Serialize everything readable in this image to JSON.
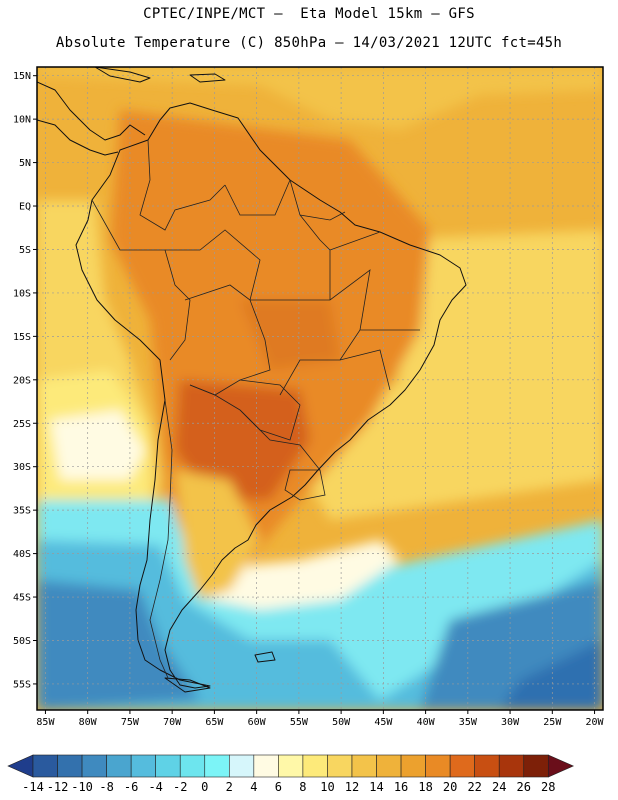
{
  "header": {
    "title_line1": "CPTEC/INPE/MCT –  Eta Model 15km – GFS",
    "title_line2": "Absolute Temperature (C) 850hPa – 14/03/2021 12UTC fct=45h"
  },
  "map": {
    "lat_labels": [
      "15N",
      "10N",
      "5N",
      "EQ",
      "5S",
      "10S",
      "15S",
      "20S",
      "25S",
      "30S",
      "35S",
      "40S",
      "45S",
      "50S",
      "55S"
    ],
    "lon_labels": [
      "85W",
      "80W",
      "75W",
      "70W",
      "65W",
      "60W",
      "55W",
      "50W",
      "45W",
      "40W",
      "35W",
      "30W",
      "25W",
      "20W"
    ],
    "extent": {
      "lon_min": -86,
      "lon_max": -19,
      "lat_min": -58,
      "lat_max": 16
    }
  },
  "colorbar": {
    "labels": [
      "-14",
      "-12",
      "-10",
      "-8",
      "-6",
      "-4",
      "-2",
      "0",
      "2",
      "4",
      "6",
      "8",
      "10",
      "12",
      "14",
      "16",
      "18",
      "20",
      "22",
      "24",
      "26",
      "28"
    ],
    "colors": [
      "#1f3d8c",
      "#2a5a9e",
      "#3371ad",
      "#3f8abf",
      "#4aa5cf",
      "#55bcdd",
      "#5fd2e6",
      "#6de5ee",
      "#7cf4f7",
      "#d6f6fb",
      "#fffbe3",
      "#fff8a8",
      "#fdea7a",
      "#f8d660",
      "#f3c34a",
      "#efb23a",
      "#eca12e",
      "#e98a25",
      "#df6a1c",
      "#c84f12",
      "#a8350c",
      "#7d2008",
      "#6a0e1a"
    ]
  },
  "legend_colors": {
    "ocean_cold_deep": "#2f6fb0",
    "ocean_cold": "#4fb8d8",
    "ocean_cool": "#7ee8f1",
    "pale": "#fffbe3",
    "warm_yellow": "#f8d660",
    "warm": "#efb23a",
    "hot": "#e98a25",
    "hottest": "#d4601c"
  }
}
